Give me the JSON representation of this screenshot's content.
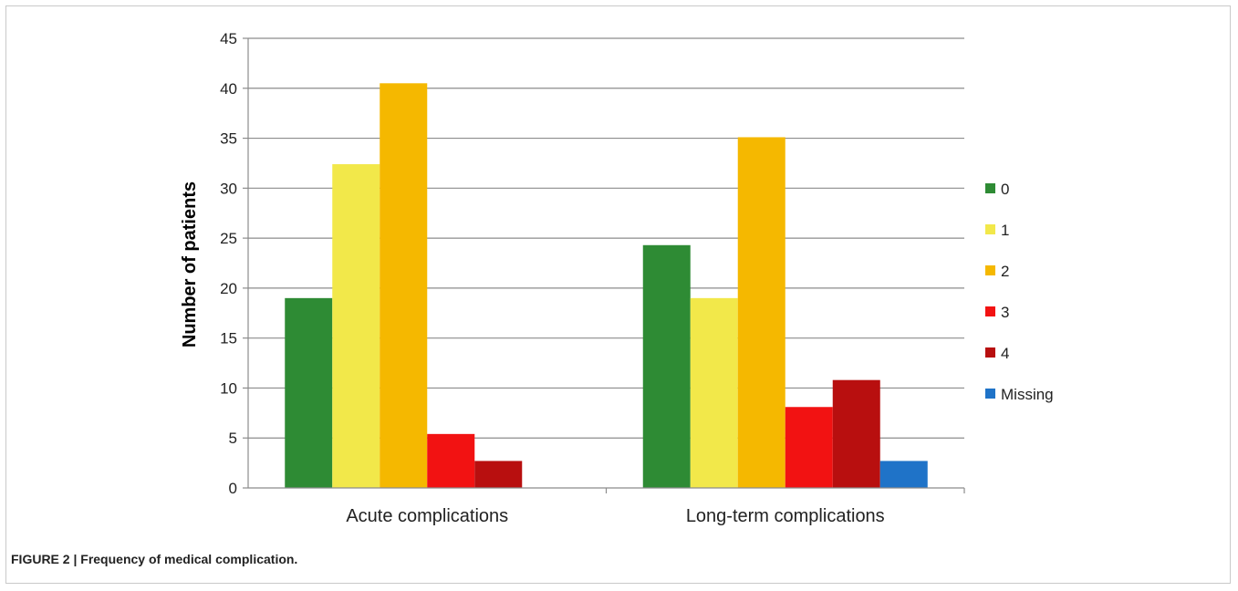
{
  "caption": {
    "label": "FIGURE 2 |",
    "text": "Frequency of medical complication."
  },
  "chart_data": {
    "type": "bar",
    "title": "",
    "xlabel": "",
    "ylabel": "Number of patients",
    "ylim": [
      0,
      45
    ],
    "yticks": [
      0,
      5,
      10,
      15,
      20,
      25,
      30,
      35,
      40,
      45
    ],
    "grid": true,
    "legend_position": "right",
    "categories": [
      "Acute complications",
      "Long-term complications"
    ],
    "series": [
      {
        "name": "0",
        "color": "#2e8b34",
        "values": [
          19,
          24.3
        ]
      },
      {
        "name": "1",
        "color": "#f2e84a",
        "values": [
          32.4,
          19
        ]
      },
      {
        "name": "2",
        "color": "#f5b800",
        "values": [
          40.5,
          35.1
        ]
      },
      {
        "name": "3",
        "color": "#f21212",
        "values": [
          5.4,
          8.1
        ]
      },
      {
        "name": "4",
        "color": "#b80f0f",
        "values": [
          2.7,
          10.8
        ]
      },
      {
        "name": "Missing",
        "color": "#1f73c8",
        "values": [
          0,
          2.7
        ]
      }
    ]
  }
}
